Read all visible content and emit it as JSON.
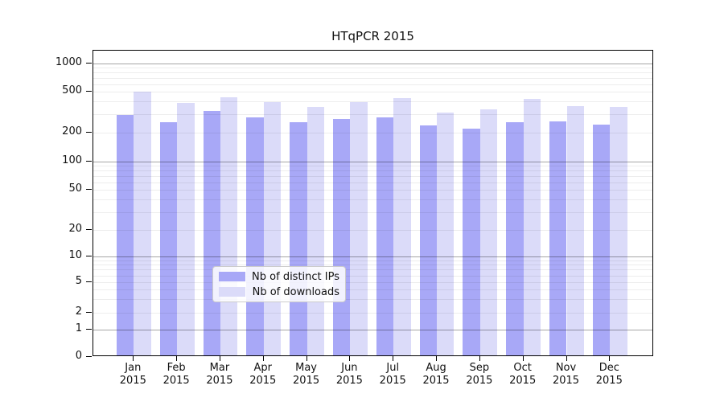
{
  "title": "HTqPCR 2015",
  "legend": {
    "items": [
      {
        "label": "Nb of distinct IPs",
        "color": "#a8a8f7"
      },
      {
        "label": "Nb of downloads",
        "color": "#dbdbf9"
      }
    ]
  },
  "chart_data": {
    "type": "bar",
    "title": "HTqPCR 2015",
    "categories": [
      "Jan 2015",
      "Feb 2015",
      "Mar 2015",
      "Apr 2015",
      "May 2015",
      "Jun 2015",
      "Jul 2015",
      "Aug 2015",
      "Sep 2015",
      "Oct 2015",
      "Nov 2015",
      "Dec 2015"
    ],
    "series": [
      {
        "name": "Nb of distinct IPs",
        "color": "#a8a8f7",
        "values": [
          285,
          244,
          311,
          271,
          243,
          260,
          270,
          228,
          211,
          244,
          249,
          232
        ]
      },
      {
        "name": "Nb of downloads",
        "color": "#dbdbf9",
        "values": [
          480,
          377,
          423,
          384,
          343,
          384,
          420,
          304,
          325,
          410,
          349,
          343
        ]
      }
    ],
    "xlabel": "",
    "ylabel": "",
    "yticks": [
      0,
      1,
      2,
      5,
      10,
      20,
      50,
      100,
      200,
      500,
      1000
    ],
    "yscale": "log-with-zero-baseline",
    "ylim": [
      0,
      1500
    ],
    "grid": "on",
    "legend_position": "lower center"
  }
}
